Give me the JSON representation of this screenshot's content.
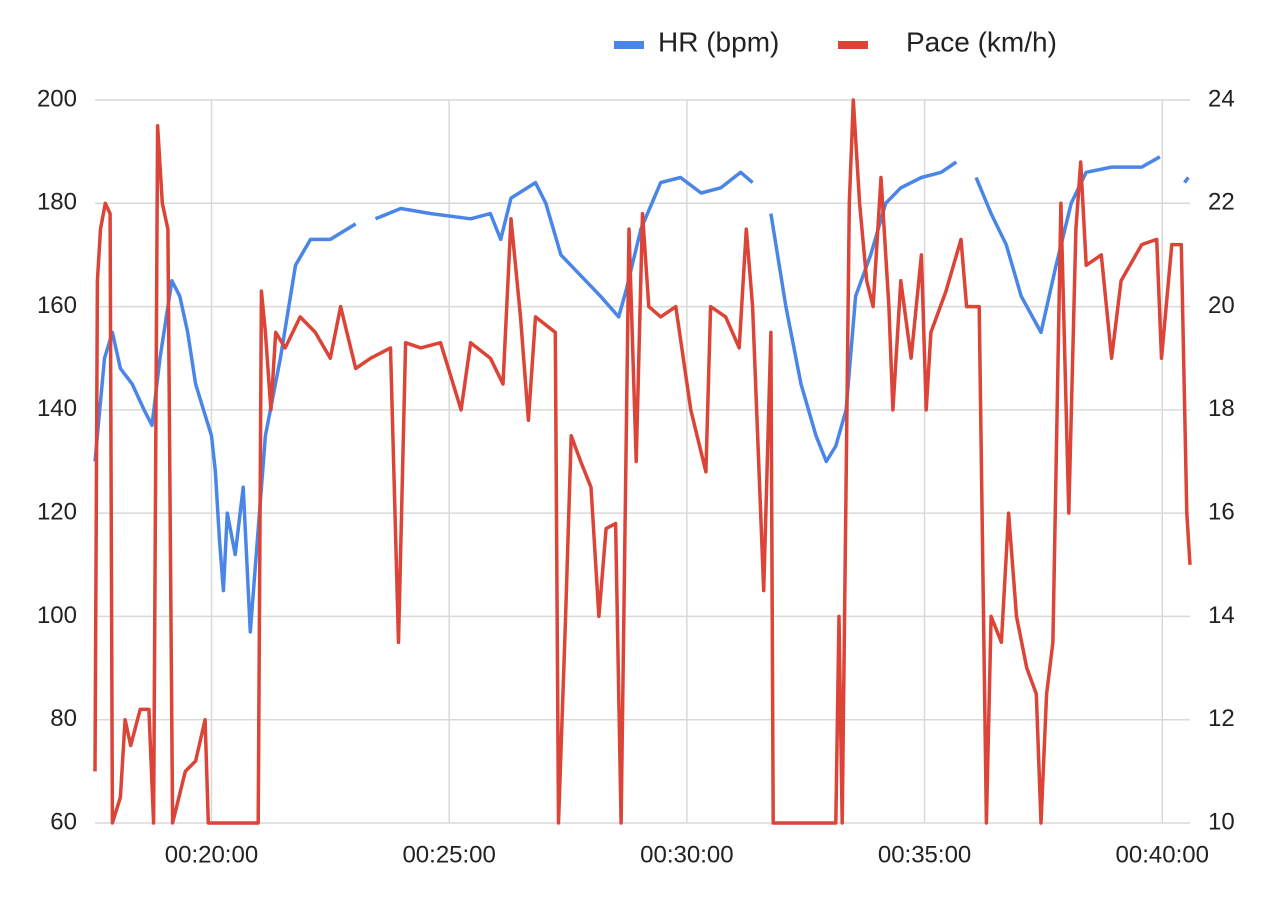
{
  "chart_data": {
    "type": "line",
    "legend_position": "top-right",
    "grid": true,
    "xlim": [
      1053,
      2435
    ],
    "xticks": [
      {
        "value": 1200,
        "label": "00:20:00"
      },
      {
        "value": 1500,
        "label": "00:25:00"
      },
      {
        "value": 1800,
        "label": "00:30:00"
      },
      {
        "value": 2100,
        "label": "00:35:00"
      },
      {
        "value": 2400,
        "label": "00:40:00"
      }
    ],
    "ylim": [
      60,
      200
    ],
    "yticks": [
      60,
      80,
      100,
      120,
      140,
      160,
      180,
      200
    ],
    "y2lim": [
      10,
      24
    ],
    "y2ticks": [
      10,
      12,
      14,
      16,
      18,
      20,
      22,
      24
    ],
    "series": [
      {
        "name": "HR (bpm)",
        "color": "#4a86e8",
        "axis": "y",
        "x": [
          1053,
          1065,
          1075,
          1085,
          1100,
          1115,
          1125,
          1135,
          1145,
          1150,
          1160,
          1170,
          1180,
          1190,
          1200,
          1205,
          1210,
          1215,
          1220,
          1230,
          1240,
          1249,
          1268,
          1287,
          1306,
          1325,
          1350,
          1382,
          1395,
          1407,
          1439,
          1477,
          1527,
          1552,
          1565,
          1578,
          1609,
          1622,
          1641,
          1666,
          1691,
          1714,
          1723,
          1742,
          1767,
          1792,
          1818,
          1843,
          1868,
          1883,
          1895,
          1906,
          1925,
          1944,
          1963,
          1976,
          1988,
          2001,
          2013,
          2032,
          2051,
          2070,
          2096,
          2121,
          2140,
          2152,
          2165,
          2184,
          2203,
          2222,
          2247,
          2266,
          2285,
          2304,
          2336,
          2374,
          2397,
          2415,
          2428,
          2433
        ],
        "values": [
          130,
          150,
          155,
          148,
          145,
          140,
          137,
          150,
          160,
          165,
          162,
          155,
          145,
          140,
          135,
          128,
          115,
          105,
          120,
          112,
          125,
          97,
          135,
          150,
          168,
          173,
          173,
          176,
          null,
          177,
          179,
          178,
          177,
          178,
          173,
          181,
          184,
          180,
          170,
          166,
          162,
          158,
          163,
          175,
          184,
          185,
          182,
          183,
          186,
          184,
          null,
          178,
          160,
          145,
          135,
          130,
          133,
          140,
          162,
          170,
          180,
          183,
          185,
          186,
          188,
          null,
          185,
          178,
          172,
          162,
          155,
          168,
          180,
          186,
          187,
          187,
          189,
          null,
          184,
          185
        ]
      },
      {
        "name": "Pace (km/h)",
        "color": "#db4437",
        "axis": "y2",
        "x": [
          1053,
          1056,
          1060,
          1066,
          1072,
          1075,
          1085,
          1091,
          1098,
          1110,
          1121,
          1127,
          1132,
          1138,
          1145,
          1151,
          1167,
          1180,
          1192,
          1196,
          1259,
          1263,
          1268,
          1275,
          1281,
          1293,
          1312,
          1331,
          1350,
          1363,
          1382,
          1401,
          1426,
          1436,
          1445,
          1464,
          1489,
          1515,
          1527,
          1552,
          1568,
          1578,
          1590,
          1600,
          1609,
          1634,
          1638,
          1647,
          1654,
          1666,
          1679,
          1689,
          1698,
          1710,
          1717,
          1727,
          1736,
          1744,
          1752,
          1767,
          1786,
          1805,
          1824,
          1830,
          1849,
          1866,
          1875,
          1883,
          1897,
          1906,
          1909,
          1988,
          1992,
          1996,
          2005,
          2010,
          2018,
          2027,
          2035,
          2045,
          2055,
          2060,
          2070,
          2083,
          2096,
          2102,
          2108,
          2127,
          2146,
          2153,
          2169,
          2178,
          2184,
          2197,
          2206,
          2216,
          2229,
          2241,
          2247,
          2254,
          2262,
          2272,
          2282,
          2291,
          2297,
          2304,
          2323,
          2336,
          2348,
          2374,
          2393,
          2399,
          2412,
          2424,
          2431,
          2435
        ],
        "values": [
          11,
          20.5,
          21.5,
          22,
          21.8,
          10,
          10.5,
          12,
          11.5,
          12.2,
          12.2,
          10,
          23.5,
          22,
          21.5,
          10,
          11,
          11.2,
          12,
          10,
          10,
          20.3,
          19.5,
          18,
          19.5,
          19.2,
          19.8,
          19.5,
          19,
          20,
          18.8,
          19,
          19.2,
          13.5,
          19.3,
          19.2,
          19.3,
          18,
          19.3,
          19,
          18.5,
          21.7,
          19.8,
          17.8,
          19.8,
          19.5,
          10,
          14,
          17.5,
          17,
          16.5,
          14,
          15.7,
          15.8,
          10,
          21.5,
          17,
          21.8,
          20,
          19.8,
          20,
          18,
          16.8,
          20,
          19.8,
          19.2,
          21.5,
          20,
          14.5,
          19.5,
          10,
          10,
          14,
          10,
          22,
          24,
          22,
          20.5,
          20,
          22.5,
          20,
          18,
          20.5,
          19,
          21,
          18,
          19.5,
          20.3,
          21.3,
          20,
          20,
          10,
          14,
          13.5,
          16,
          14,
          13,
          12.5,
          10,
          12.5,
          13.5,
          22,
          16,
          21.5,
          22.8,
          20.8,
          21,
          19,
          20.5,
          21.2,
          21.3,
          19,
          21.2,
          21.2,
          16,
          15
        ]
      }
    ]
  }
}
